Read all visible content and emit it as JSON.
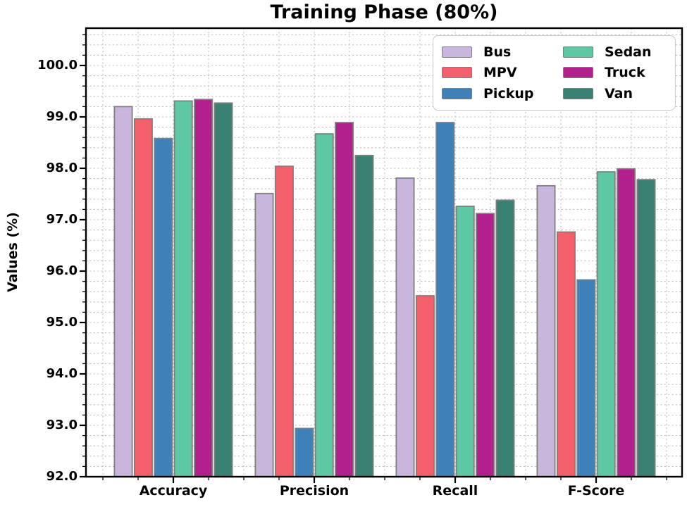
{
  "figure": {
    "title": "Training Phase (80%)",
    "ylabel": "Values (%)"
  },
  "chart_data": {
    "type": "bar",
    "title": "Training Phase (80%)",
    "xlabel": "",
    "ylabel": "Values (%)",
    "categories": [
      "Accuracy",
      "Precision",
      "Recall",
      "F-Score"
    ],
    "series": [
      {
        "name": "Bus",
        "color": "#c9b6dd",
        "values": [
          99.2,
          97.51,
          97.81,
          97.66
        ]
      },
      {
        "name": "MPV",
        "color": "#f1606b",
        "values": [
          98.96,
          98.04,
          95.52,
          96.76
        ]
      },
      {
        "name": "Pickup",
        "color": "#3d81b8",
        "values": [
          98.58,
          92.94,
          98.89,
          95.83
        ]
      },
      {
        "name": "Sedan",
        "color": "#5ec7a4",
        "values": [
          99.31,
          98.67,
          97.26,
          97.93
        ]
      },
      {
        "name": "Truck",
        "color": "#b1208d",
        "values": [
          99.34,
          98.89,
          97.12,
          97.99
        ]
      },
      {
        "name": "Van",
        "color": "#3b8173",
        "values": [
          99.27,
          98.25,
          97.38,
          97.78
        ]
      }
    ],
    "yticks": [
      "92.0",
      "93.0",
      "94.0",
      "95.0",
      "96.0",
      "97.0",
      "98.0",
      "99.0",
      "100.0"
    ],
    "ylim": [
      92.0,
      100.73
    ],
    "grid": true,
    "grid_style": "dotted",
    "minor_tick_step_y": 0.2,
    "legend_position": "upper right",
    "legend_columns": 2,
    "bar_edge_color": "#7f7f7f"
  }
}
